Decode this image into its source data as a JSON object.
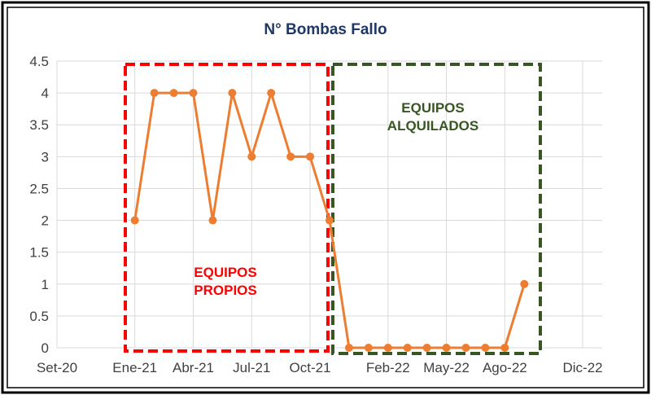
{
  "chart_data": {
    "type": "line",
    "title": "N° Bombas Fallo",
    "xlabel": "",
    "ylabel": "",
    "x_tick_labels": [
      "Set-20",
      "Ene-21",
      "Abr-21",
      "Jul-21",
      "Oct-21",
      "Feb-22",
      "May-22",
      "Ago-22",
      "Dic-22"
    ],
    "y_tick_labels": [
      "0",
      "0.5",
      "1",
      "1.5",
      "2",
      "2.5",
      "3",
      "3.5",
      "4",
      "4.5"
    ],
    "ylim": [
      0,
      4.5
    ],
    "grid": true,
    "legend": "none",
    "series": [
      {
        "color": "#ed7d31",
        "values": [
          2,
          4,
          4,
          4,
          2,
          4,
          3,
          4,
          3,
          3,
          2,
          0,
          0,
          0,
          0,
          0,
          0,
          0,
          0,
          0,
          1
        ]
      }
    ],
    "annotations": [
      {
        "label": "EQUIPOS PROPIOS",
        "lines": [
          "EQUIPOS",
          "PROPIOS"
        ],
        "color": "#ff0000"
      },
      {
        "label": "EQUIPOS ALQUILADOS",
        "lines": [
          "EQUIPOS",
          "ALQUILADOS"
        ],
        "color": "#375623"
      }
    ]
  }
}
